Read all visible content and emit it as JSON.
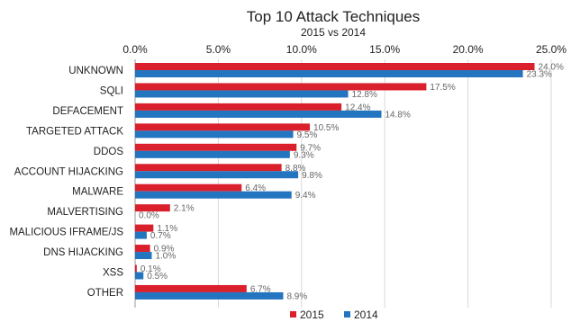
{
  "chart_data": {
    "type": "bar",
    "orientation": "horizontal",
    "title": "Top 10 Attack Techniques",
    "subtitle": "2015 vs 2014",
    "xlim": [
      0,
      25
    ],
    "ticks": [
      0,
      5,
      10,
      15,
      20,
      25
    ],
    "tick_labels": [
      "0.0%",
      "5.0%",
      "10.0%",
      "15.0%",
      "20.0%",
      "25.0%"
    ],
    "categories": [
      "UNKNOWN",
      "SQLI",
      "DEFACEMENT",
      "TARGETED ATTACK",
      "DDOS",
      "ACCOUNT HIJACKING",
      "MALWARE",
      "MALVERTISING",
      "MALICIOUS IFRAME/JS",
      "DNS HIJACKING",
      "XSS",
      "OTHER"
    ],
    "series": [
      {
        "name": "2015",
        "color": "#d9202c",
        "values": [
          24.0,
          17.5,
          12.4,
          10.5,
          9.7,
          8.8,
          6.4,
          2.1,
          1.1,
          0.9,
          0.1,
          6.7
        ],
        "labels": [
          "24.0%",
          "17.5%",
          "12.4%",
          "10.5%",
          "9.7%",
          "8.8%",
          "6.4%",
          "2.1%",
          "1.1%",
          "0.9%",
          "0.1%",
          "6.7%"
        ]
      },
      {
        "name": "2014",
        "color": "#2375c0",
        "values": [
          23.3,
          12.8,
          14.8,
          9.5,
          9.3,
          9.8,
          9.4,
          0.0,
          0.7,
          1.0,
          0.5,
          8.9
        ],
        "labels": [
          "23.3%",
          "12.8%",
          "14.8%",
          "9.5%",
          "9.3%",
          "9.8%",
          "9.4%",
          "0.0%",
          "0.7%",
          "1.0%",
          "0.5%",
          "8.9%"
        ]
      }
    ],
    "grid": true,
    "legend": "bottom-center"
  }
}
